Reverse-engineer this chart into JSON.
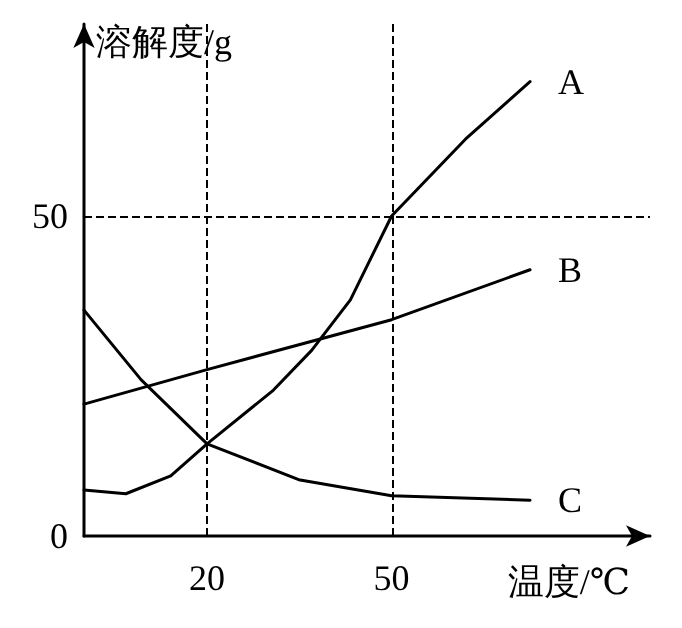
{
  "chart_data": {
    "type": "line",
    "xlabel": "温度/℃",
    "ylabel": "溶解度/g",
    "xlim": [
      0,
      92
    ],
    "xticks": [
      20,
      50
    ],
    "ylim": [
      0,
      80
    ],
    "yticks": [
      0,
      50
    ],
    "grid": false,
    "legend": false,
    "marker": "none",
    "line_style": "solid",
    "series": [
      {
        "name": "A",
        "color": "#000000",
        "x": [
          0,
          6.8,
          14.1,
          20,
          30.8,
          37,
          43.3,
          50,
          62,
          72.5
        ],
        "values": [
          7.2,
          6.6,
          9.4,
          14.4,
          22.8,
          29,
          36.9,
          50,
          62,
          71
        ]
      },
      {
        "name": "B",
        "color": "#000000",
        "x": [
          0,
          20,
          50,
          72.5
        ],
        "values": [
          20.6,
          26,
          33.8,
          41.6
        ]
      },
      {
        "name": "C",
        "color": "#000000",
        "x": [
          0,
          9.3,
          20,
          34.9,
          50,
          72.5
        ],
        "values": [
          35.3,
          24.4,
          14.4,
          8.8,
          6.3,
          5.6
        ]
      }
    ],
    "ref_lines": [
      {
        "axis": "x",
        "value": 20,
        "line_style": "dashed"
      },
      {
        "axis": "x",
        "value": 50,
        "line_style": "dashed"
      },
      {
        "axis": "y",
        "value": 50,
        "line_style": "dashed"
      }
    ]
  }
}
